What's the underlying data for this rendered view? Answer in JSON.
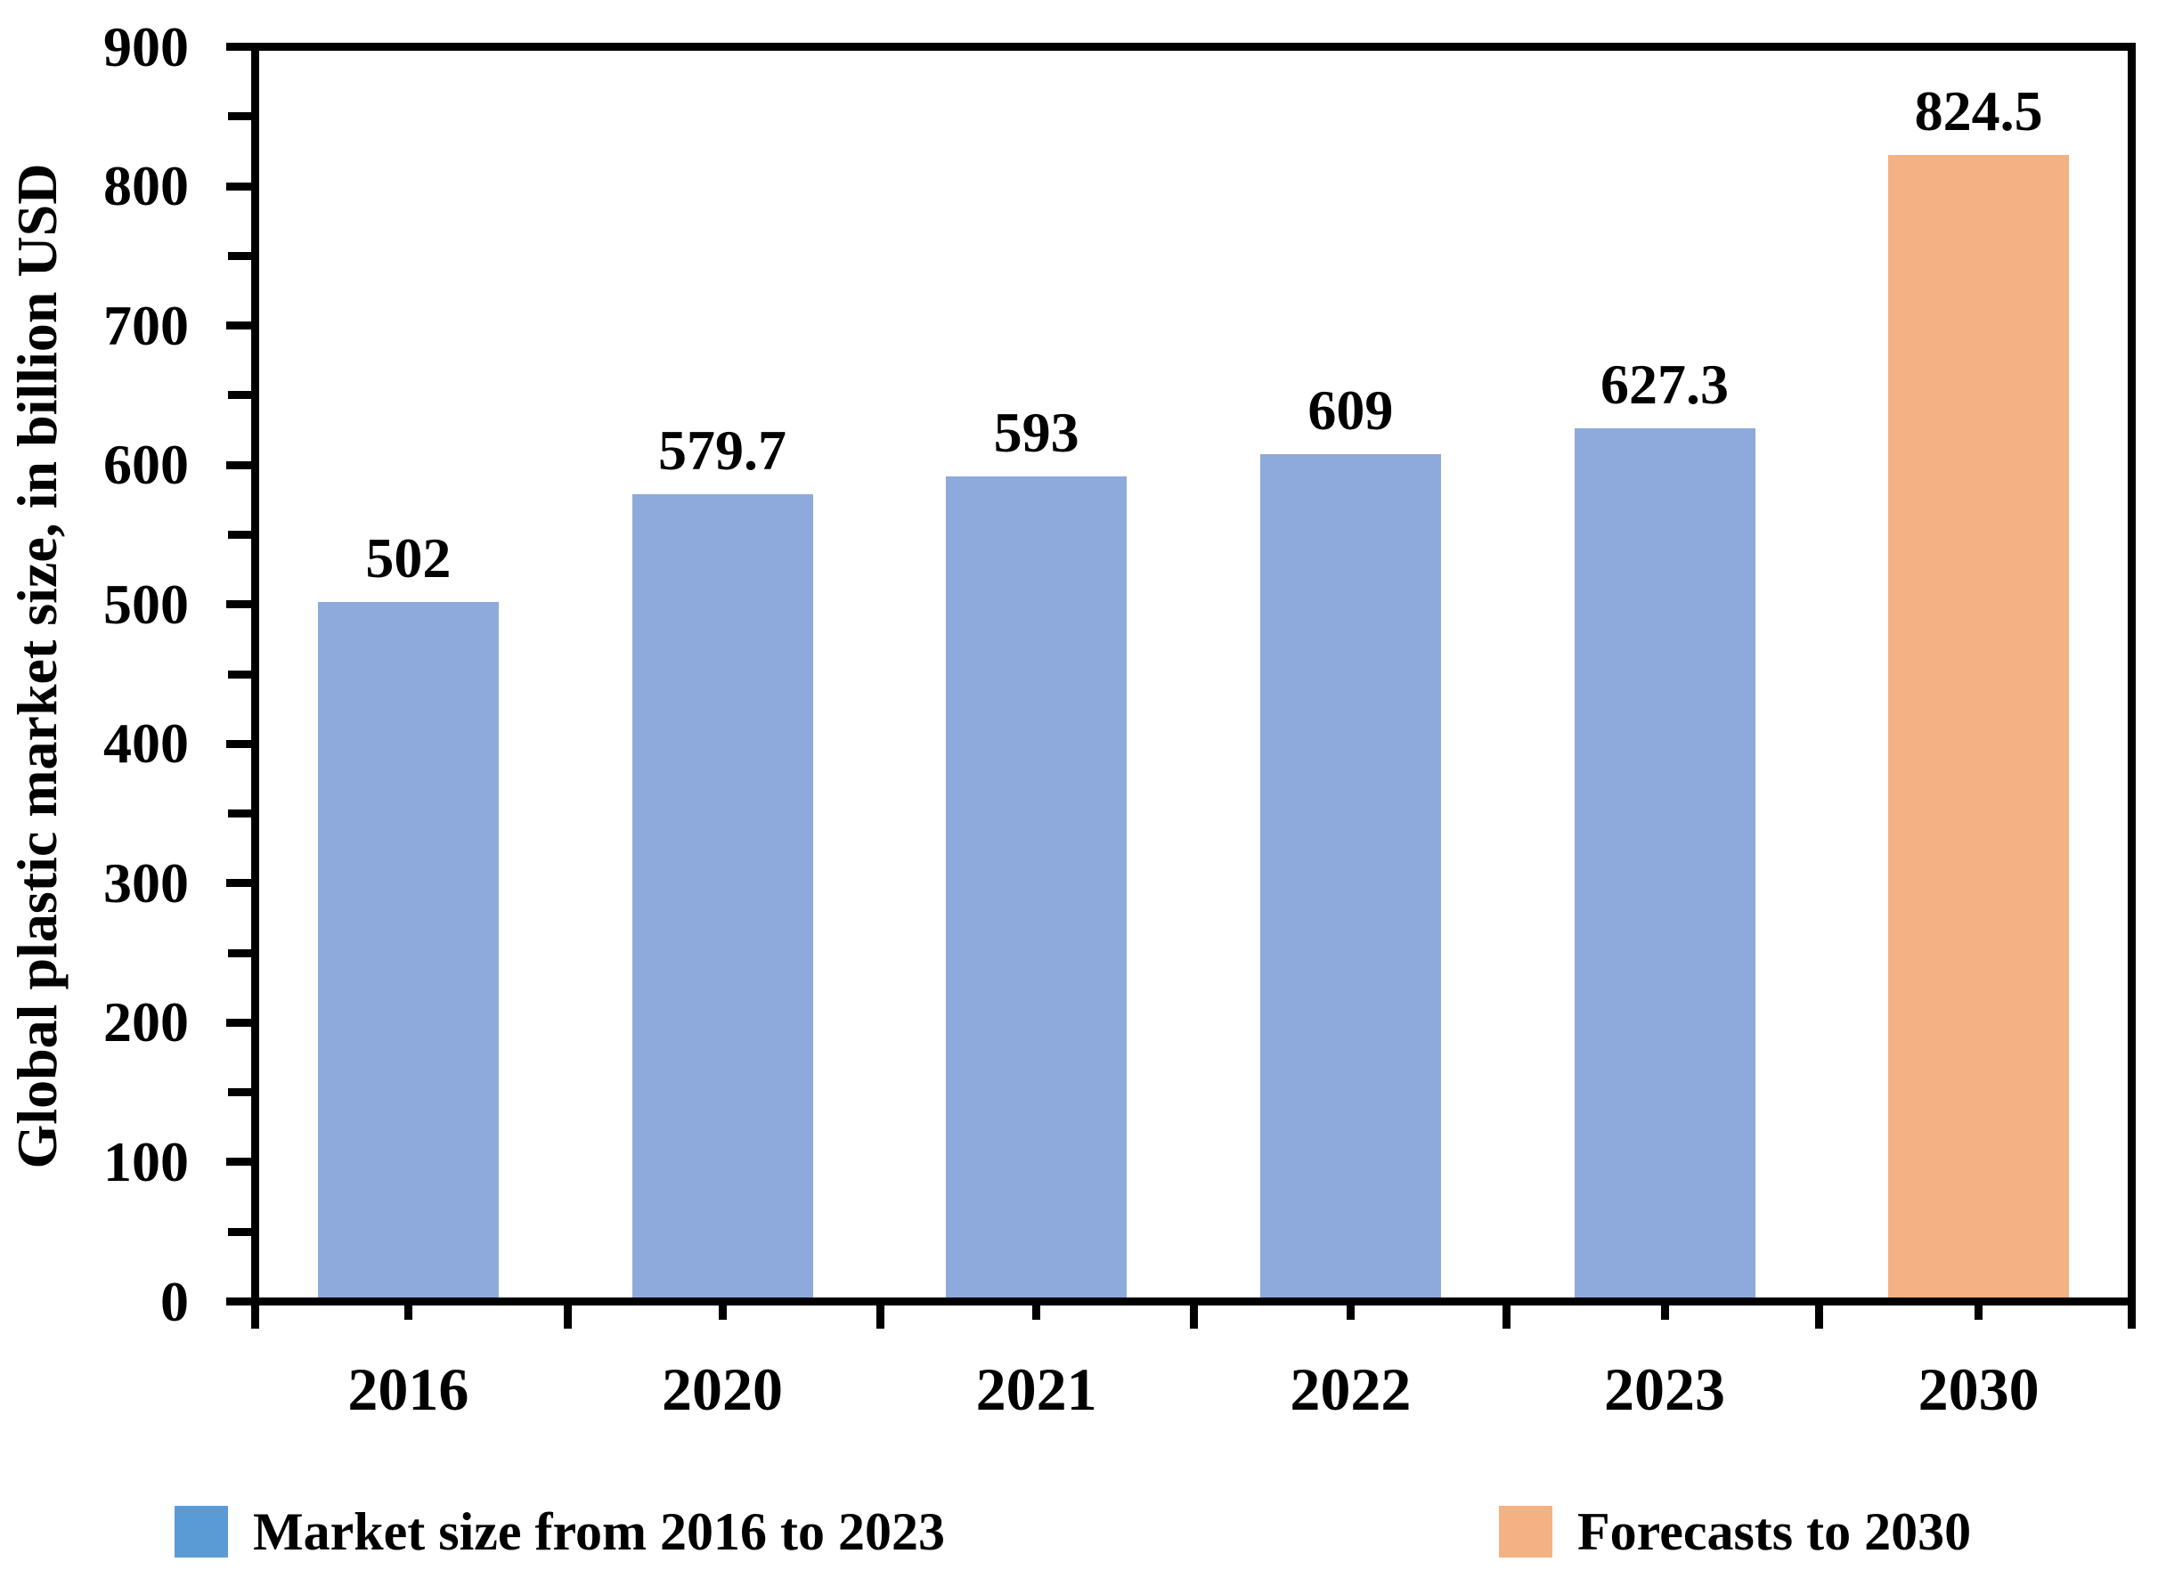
{
  "chart_data": {
    "type": "bar",
    "categories": [
      "2016",
      "2020",
      "2021",
      "2022",
      "2023",
      "2030"
    ],
    "series": [
      {
        "name": "Market size from 2016 to 2023",
        "values": [
          502,
          579.7,
          593,
          609,
          627.3,
          null
        ],
        "bar_color": "#8EA9DB",
        "legend_color": "#5B9BD5"
      },
      {
        "name": "Forecasts to 2030",
        "values": [
          null,
          null,
          null,
          null,
          null,
          824.5
        ],
        "bar_color": "#F4B183",
        "legend_color": "#F4B183"
      }
    ],
    "data_labels": [
      "502",
      "579.7",
      "593",
      "609",
      "627.3",
      "824.5"
    ],
    "title": "",
    "xlabel": "",
    "ylabel": "Global plastic market size, in billion USD",
    "ylim": [
      0,
      900
    ],
    "y_major_ticks": [
      0,
      100,
      200,
      300,
      400,
      500,
      600,
      700,
      800,
      900
    ],
    "y_minor_step": 50,
    "x_tick_style": "major ticks at category boundaries, minor ticks at category centers",
    "grid": "off",
    "legend_position": "bottom",
    "frame": "full box",
    "axis_color": "#000000",
    "text_color": "#000000",
    "background_color": "#FFFFFF"
  }
}
